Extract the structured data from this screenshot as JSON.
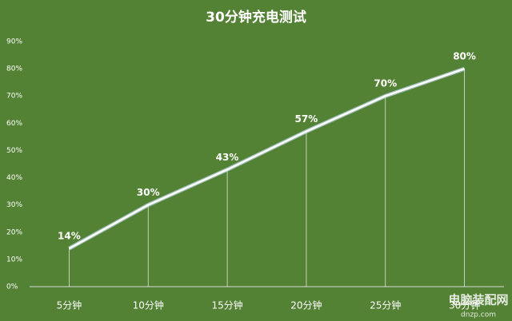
{
  "chart_data": {
    "type": "line",
    "title": "30分钟充电测试",
    "categories": [
      "5分钟",
      "10分钟",
      "15分钟",
      "20分钟",
      "25分钟",
      "30分钟"
    ],
    "series": [
      {
        "color": "#ffffff",
        "values": [
          14,
          30,
          43,
          57,
          70,
          80
        ],
        "value_labels": [
          "14%",
          "30%",
          "43%",
          "57%",
          "70%",
          "80%"
        ]
      }
    ],
    "ylim": [
      0,
      90
    ],
    "yticks": [
      {
        "value": 0,
        "label": "0%"
      },
      {
        "value": 10,
        "label": "10%"
      },
      {
        "value": 20,
        "label": "20%"
      },
      {
        "value": 30,
        "label": "30%"
      },
      {
        "value": 40,
        "label": "40%"
      },
      {
        "value": 50,
        "label": "50%"
      },
      {
        "value": 60,
        "label": "60%"
      },
      {
        "value": 70,
        "label": "70%"
      },
      {
        "value": 80,
        "label": "80%"
      },
      {
        "value": 90,
        "label": "90%"
      }
    ],
    "drop_lines": true,
    "watermark": [
      "电脑装配网",
      "dnzp.com"
    ]
  }
}
